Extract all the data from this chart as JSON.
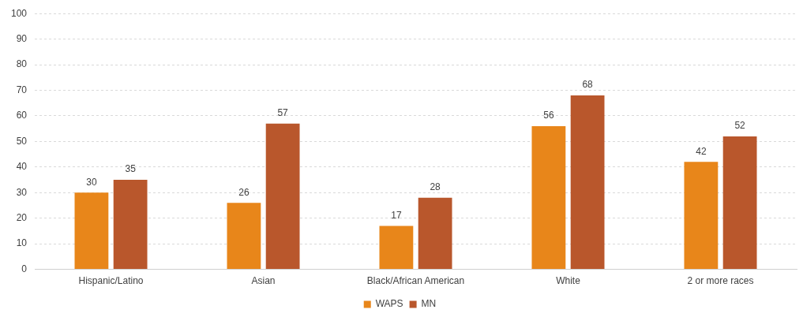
{
  "chart_data": {
    "type": "bar",
    "categories": [
      "Hispanic/Latino",
      "Asian",
      "Black/African American",
      "White",
      "2 or more races"
    ],
    "series": [
      {
        "name": "WAPS",
        "color": "#e8861a",
        "values": [
          30,
          26,
          17,
          56,
          42
        ]
      },
      {
        "name": "MN",
        "color": "#b9572c",
        "values": [
          35,
          57,
          28,
          68,
          52
        ]
      }
    ],
    "ylim": [
      0,
      100
    ],
    "yticks": [
      0,
      10,
      20,
      30,
      40,
      50,
      60,
      70,
      80,
      90,
      100
    ],
    "grid": "y",
    "legend": "bottom",
    "data_labels": true
  }
}
